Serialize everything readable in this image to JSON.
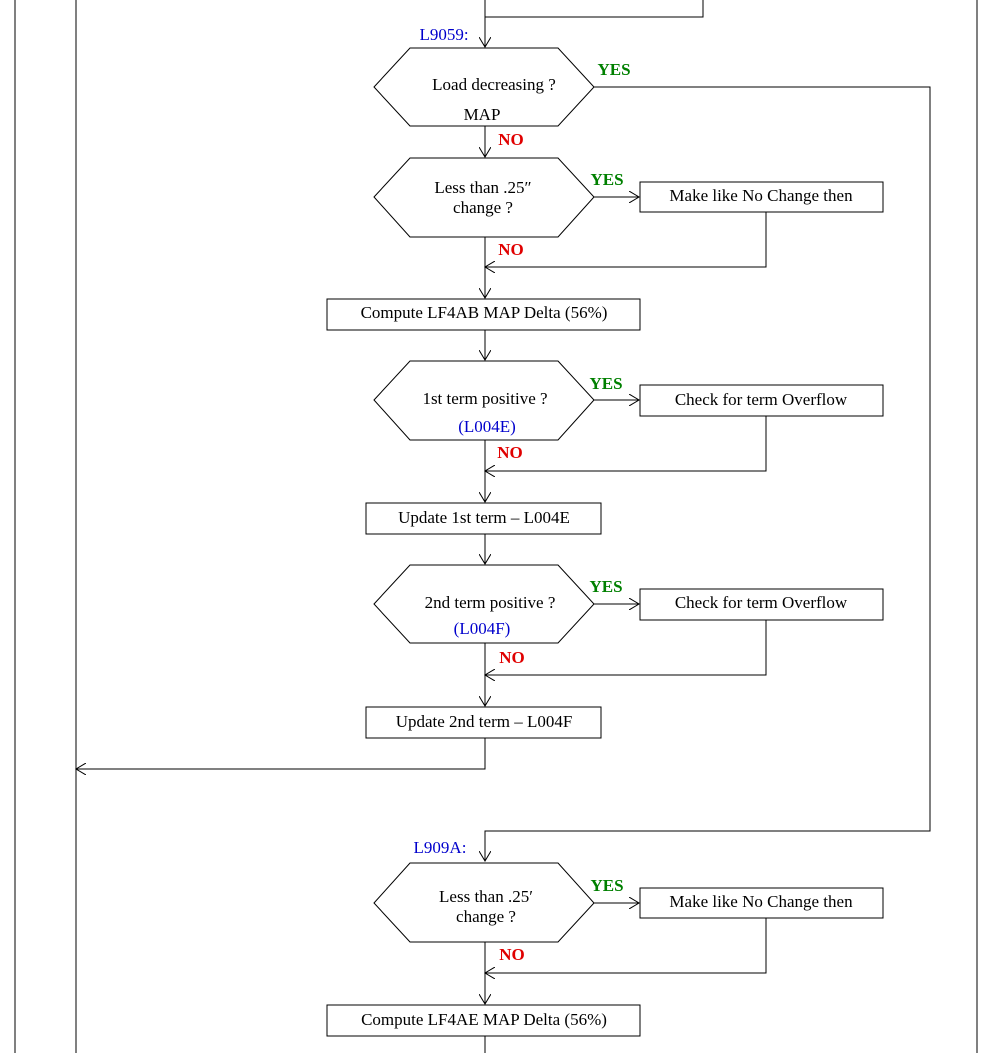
{
  "entry_labels": [
    "L9059:",
    "L909A:"
  ],
  "decisions": [
    {
      "lines": [
        "Load decreasing ?"
      ],
      "note": "MAP",
      "yes": "YES",
      "no": "NO"
    },
    {
      "lines": [
        "Less than .25″",
        "change ?"
      ],
      "yes": "YES",
      "no": "NO"
    },
    {
      "lines": [
        "1st term positive ?"
      ],
      "note": "(L004E)",
      "yes": "YES",
      "no": "NO"
    },
    {
      "lines": [
        "2nd term positive ?"
      ],
      "note": "(L004F)",
      "yes": "YES",
      "no": "NO"
    },
    {
      "lines": [
        "Less than .25′",
        "change ?"
      ],
      "yes": "YES",
      "no": "NO"
    }
  ],
  "boxes": [
    "Make like No Change then",
    "Compute LF4AB MAP Delta (56%)",
    "Check for term Overflow",
    "Update 1st term – L004E",
    "Check for term Overflow",
    "Update 2nd term – L004F",
    "Make like No Change then",
    "Compute LF4AE MAP Delta (56%)"
  ]
}
